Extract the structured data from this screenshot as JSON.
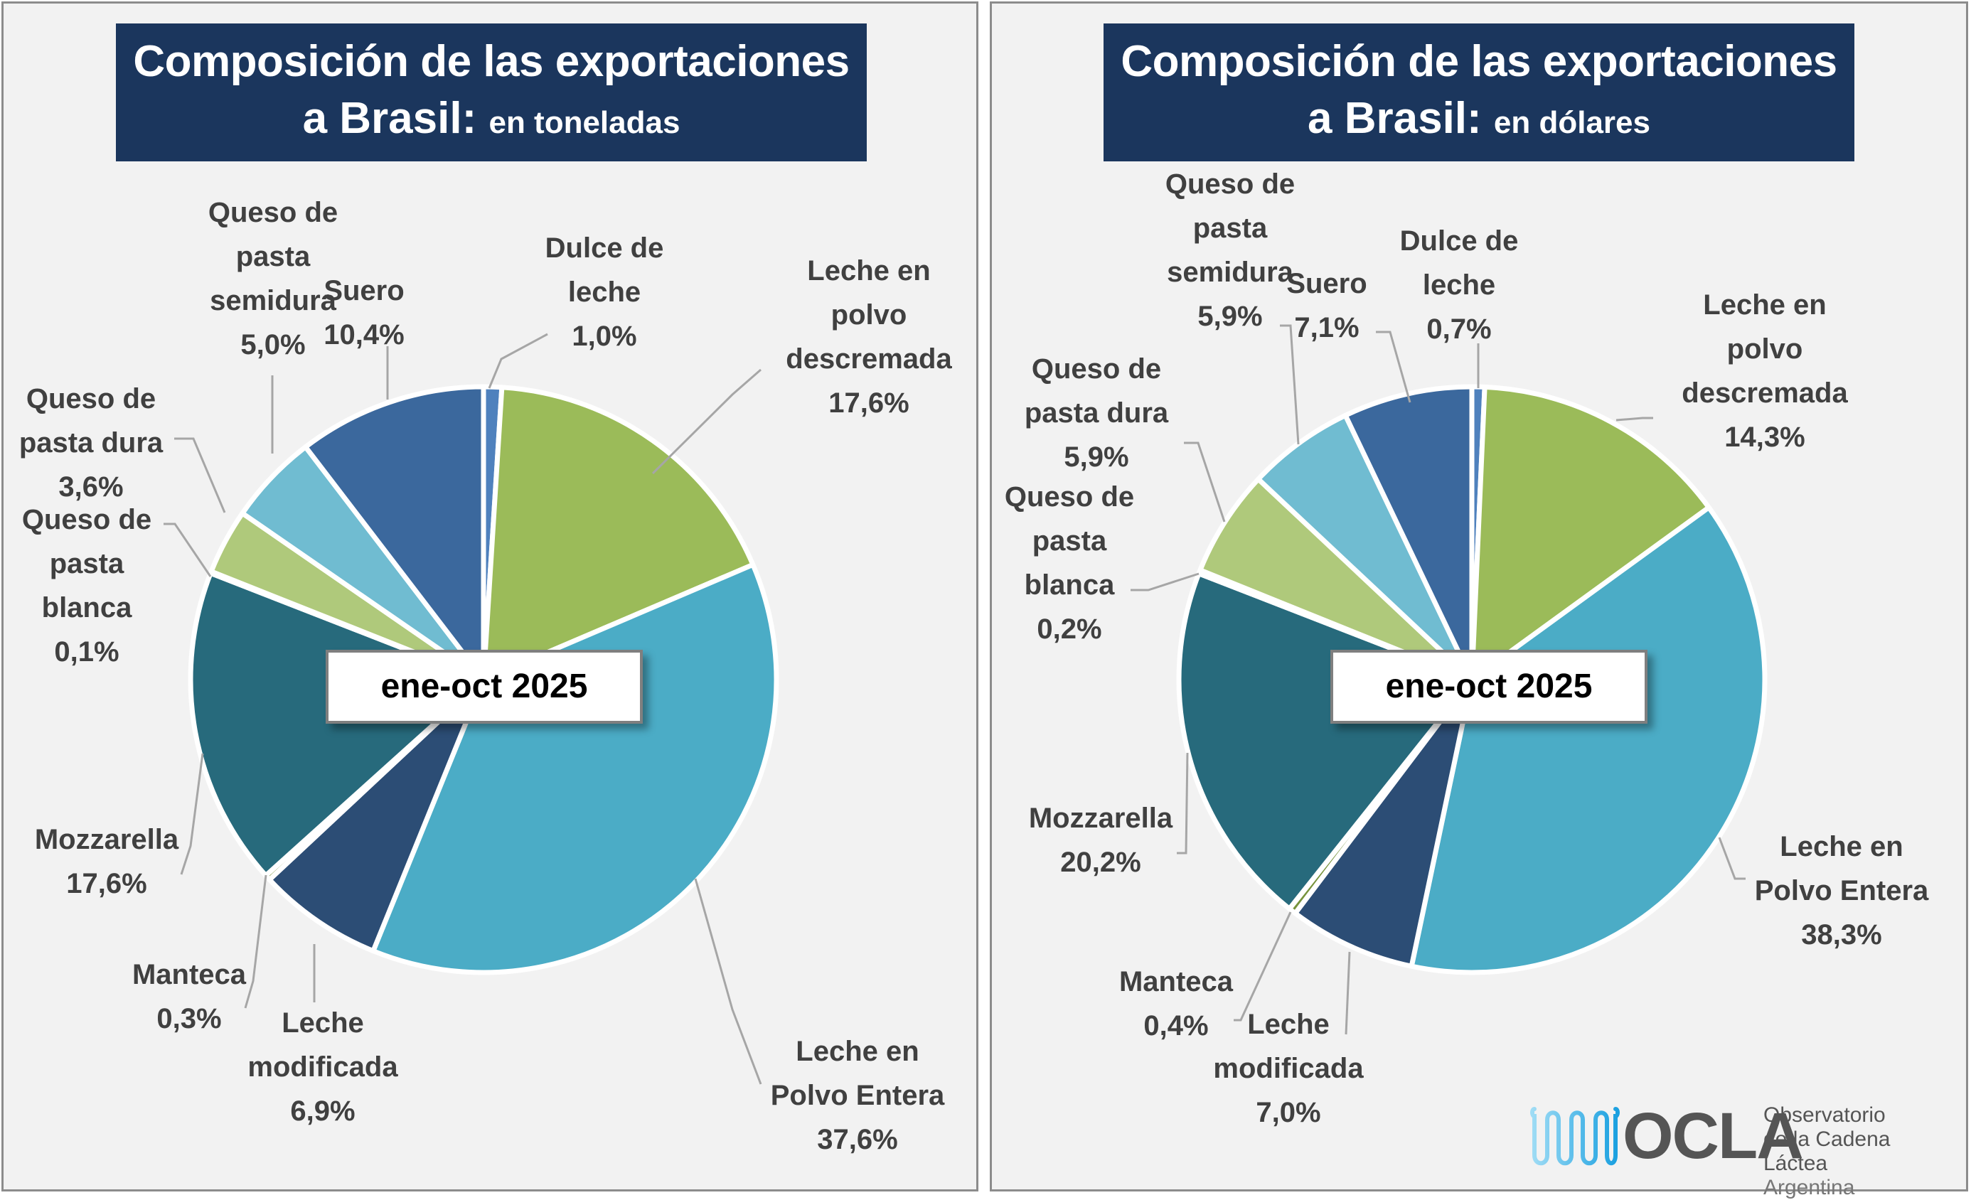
{
  "chart_data": [
    {
      "type": "pie",
      "title": "Composición de las exportaciones a Brasil: en toneladas",
      "title_main_line1": "Composición de las exportaciones",
      "title_main_line2": "a Brasil:",
      "title_sub": "en toneladas",
      "period_label": "ene-oct 2025",
      "unit": "%",
      "categories": [
        "Dulce de leche",
        "Leche en polvo descremada",
        "Leche en Polvo Entera",
        "Leche modificada",
        "Manteca",
        "Mozzarella",
        "Queso de pasta blanca",
        "Queso de pasta dura",
        "Queso de pasta semidura",
        "Suero"
      ],
      "values": [
        1.0,
        17.6,
        37.6,
        6.9,
        0.3,
        17.6,
        0.1,
        3.6,
        5.0,
        10.4
      ],
      "data_labels": [
        "Dulce de\nleche\n1,0%",
        "Leche en\npolvo\ndescremada\n17,6%",
        "Leche en\nPolvo Entera\n37,6%",
        "Leche\nmodificada\n6,9%",
        "Manteca\n0,3%",
        "Mozzarella\n17,6%",
        "Queso de\npasta\nblanca\n0,1%",
        "Queso de\npasta dura\n3,6%",
        "Queso de\npasta\nsemidura\n5,0%",
        "Suero\n10,4%"
      ],
      "start_angle": "12 o'clock, clockwise"
    },
    {
      "type": "pie",
      "title": "Composición de las exportaciones a Brasil: en dólares",
      "title_main_line1": "Composición de las exportaciones",
      "title_main_line2": "a Brasil:",
      "title_sub": "en dólares",
      "period_label": "ene-oct 2025",
      "unit": "%",
      "categories": [
        "Dulce de leche",
        "Leche en polvo descremada",
        "Leche en Polvo Entera",
        "Leche modificada",
        "Manteca",
        "Mozzarella",
        "Queso de pasta blanca",
        "Queso de pasta dura",
        "Queso de pasta semidura",
        "Suero"
      ],
      "values": [
        0.7,
        14.3,
        38.3,
        7.0,
        0.4,
        20.2,
        0.2,
        5.9,
        5.9,
        7.1
      ],
      "data_labels": [
        "Dulce de\nleche\n0,7%",
        "Leche en\npolvo\ndescremada\n14,3%",
        "Leche en\nPolvo Entera\n38,3%",
        "Leche\nmodificada\n7,0%",
        "Manteca\n0,4%",
        "Mozzarella\n20,2%",
        "Queso de\npasta\nblanca\n0,2%",
        "Queso de\npasta dura\n5,9%",
        "Queso de\npasta\nsemidura\n5,9%",
        "Suero\n7,1%"
      ],
      "start_angle": "12 o'clock, clockwise"
    }
  ],
  "colors": {
    "Dulce de leche": "#4f81bd",
    "Leche en polvo descremada": "#9bbb59",
    "Leche en Polvo Entera": "#4bacc6",
    "Leche modificada": "#2c4d75",
    "Manteca": "#77933c",
    "Mozzarella": "#276a7c",
    "Queso de pasta blanca": "#d7e4bd",
    "Queso de pasta dura": "#afc97b",
    "Queso de pasta semidura": "#70bcd1",
    "Suero": "#3b689d",
    "title_bg": "#1b365d"
  },
  "logo": {
    "name": "OCLA",
    "line1": "Observatorio",
    "line2": "de la Cadena Láctea",
    "line3": "Argentina"
  }
}
